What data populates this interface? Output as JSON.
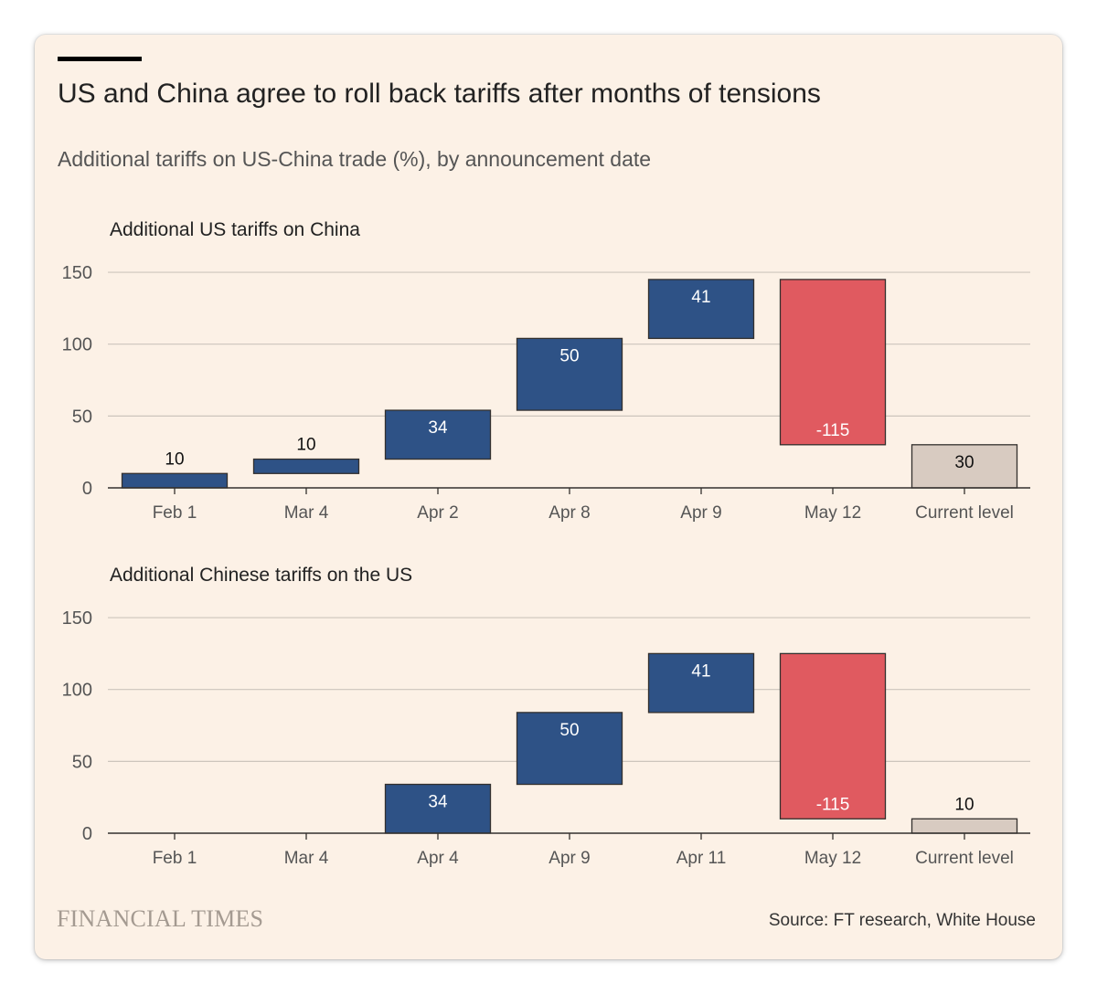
{
  "title": "US and China agree to roll back tariffs after months of tensions",
  "subtitle": "Additional tariffs on US-China trade (%), by announcement date",
  "source": "Source: FT research, White House",
  "brand": "FINANCIAL TIMES",
  "colors": {
    "increase": "#2e5286",
    "decrease": "#e05a60",
    "total": "#d8cbc1",
    "grid": "#cdc5bc",
    "axis": "#33302e",
    "background": "#fcf1e6"
  },
  "chart_data": [
    {
      "type": "waterfall",
      "title": "Additional US tariffs on China",
      "categories": [
        "Feb 1",
        "Mar 4",
        "Apr 2",
        "Apr 8",
        "Apr 9",
        "May 12",
        "Current level"
      ],
      "values": [
        10,
        10,
        34,
        50,
        41,
        -115,
        30
      ],
      "kinds": [
        "increase",
        "increase",
        "increase",
        "increase",
        "increase",
        "decrease",
        "total"
      ],
      "labels": [
        "10",
        "10",
        "34",
        "50",
        "41",
        "-115",
        "30"
      ],
      "yticks": [
        0,
        50,
        100,
        150
      ],
      "ylim": [
        0,
        150
      ],
      "grid": true
    },
    {
      "type": "waterfall",
      "title": "Additional Chinese tariffs on the US",
      "categories": [
        "Feb 1",
        "Mar 4",
        "Apr 4",
        "Apr 9",
        "Apr 11",
        "May 12",
        "Current level"
      ],
      "values": [
        0,
        0,
        34,
        50,
        41,
        -115,
        10
      ],
      "kinds": [
        "increase",
        "increase",
        "increase",
        "increase",
        "increase",
        "decrease",
        "total"
      ],
      "labels": [
        "",
        "",
        "34",
        "50",
        "41",
        "-115",
        "10"
      ],
      "yticks": [
        0,
        50,
        100,
        150
      ],
      "ylim": [
        0,
        150
      ],
      "grid": true
    }
  ]
}
